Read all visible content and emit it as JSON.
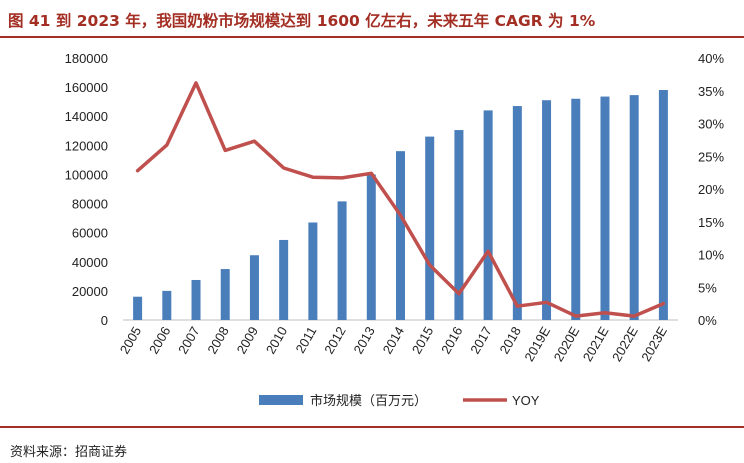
{
  "header": {
    "title": "图 41  到 2023 年，我国奶粉市场规模达到 1600 亿左右，未来五年 CAGR 为 1%"
  },
  "footer": {
    "source": "资料来源：招商证券"
  },
  "colors": {
    "bar": "#4a7ebb",
    "line": "#c0504d",
    "accent": "#a32e23"
  },
  "chart_data": {
    "type": "bar",
    "categories": [
      "2005",
      "2006",
      "2007",
      "2008",
      "2009",
      "2010",
      "2011",
      "2012",
      "2013",
      "2014",
      "2015",
      "2016",
      "2017",
      "2018",
      "2019E",
      "2020E",
      "2021E",
      "2022E",
      "2023E"
    ],
    "series": [
      {
        "name": "市场规模（百万元）",
        "type": "bar",
        "axis": "left",
        "values": [
          16000,
          20000,
          27500,
          35000,
          44500,
          55000,
          67000,
          81500,
          100000,
          116000,
          126000,
          130500,
          144000,
          147000,
          151000,
          152000,
          153500,
          154500,
          158000
        ]
      },
      {
        "name": "YOY",
        "type": "line",
        "axis": "right",
        "values": [
          0.228,
          0.267,
          0.362,
          0.259,
          0.273,
          0.232,
          0.218,
          0.217,
          0.224,
          0.16,
          0.084,
          0.04,
          0.105,
          0.021,
          0.027,
          0.006,
          0.011,
          0.006,
          0.025
        ]
      }
    ],
    "y_left": {
      "min": 0,
      "max": 180000,
      "ticks": [
        "0",
        "20000",
        "40000",
        "60000",
        "80000",
        "100000",
        "120000",
        "140000",
        "160000",
        "180000"
      ]
    },
    "y_right": {
      "min": 0,
      "max": 0.4,
      "ticks": [
        "0%",
        "5%",
        "10%",
        "15%",
        "20%",
        "25%",
        "30%",
        "35%",
        "40%"
      ]
    },
    "legend_position": "bottom",
    "grid": false
  }
}
